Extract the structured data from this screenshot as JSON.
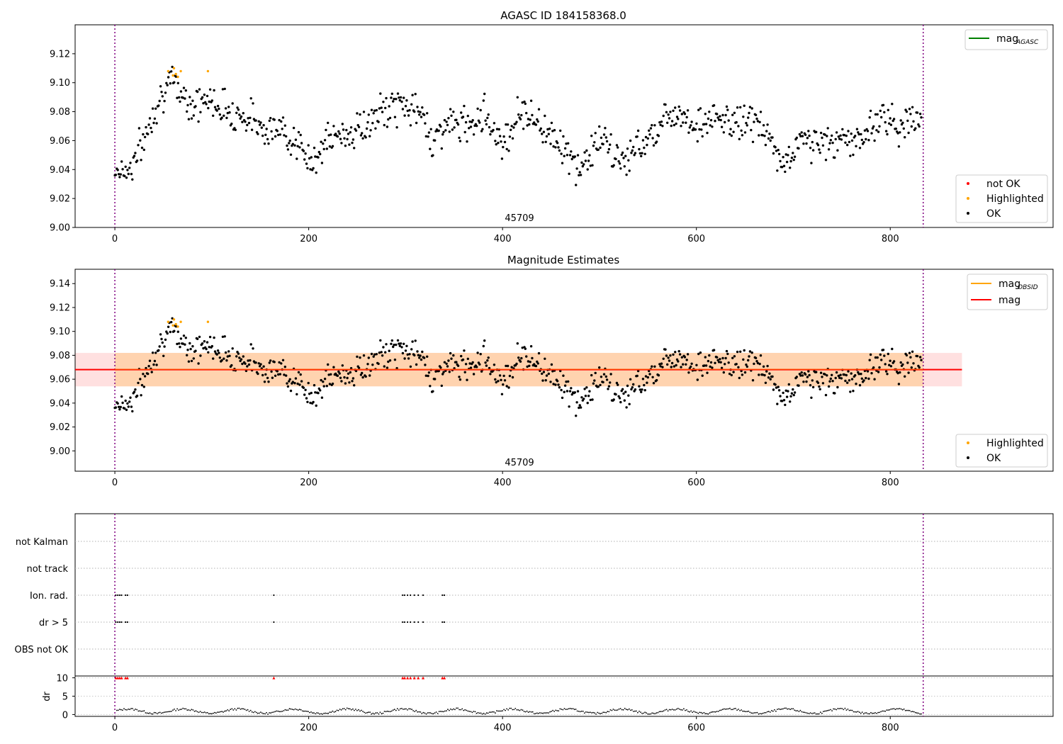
{
  "chart_data": [
    {
      "type": "scatter",
      "title": "AGASC ID 184158368.0",
      "xlabel": "",
      "ylabel": "",
      "xlim": [
        -41,
        968
      ],
      "ylim": [
        9.0,
        9.14
      ],
      "x_ticks": [
        "0",
        "200",
        "400",
        "600",
        "800"
      ],
      "y_ticks": [
        "9.00",
        "9.02",
        "9.04",
        "9.06",
        "9.08",
        "9.10",
        "9.12"
      ],
      "annotation": "45709",
      "vlines": [
        0,
        834
      ],
      "legend_lines": {
        "position": "top-right",
        "label": "mag",
        "sub": "AGASC",
        "color": "#008000"
      },
      "legend_points": {
        "position": "bottom-right",
        "items": [
          {
            "label": "not OK",
            "color": "#ff0000"
          },
          {
            "label": "Highlighted",
            "color": "#ffa500"
          },
          {
            "label": "OK",
            "color": "#000000"
          }
        ]
      },
      "series": [
        {
          "name": "Highlighted",
          "color": "#ffa500",
          "points": [
            [
              55,
              9.108
            ],
            [
              60,
              9.105
            ],
            [
              61,
              9.11
            ],
            [
              63,
              9.106
            ],
            [
              65,
              9.104
            ],
            [
              68,
              9.108
            ],
            [
              96,
              9.108
            ]
          ]
        },
        {
          "name": "OK",
          "color": "#000000",
          "model": {
            "n": 830,
            "x0": 0,
            "x1": 832,
            "base": 9.064,
            "seed": 7,
            "knots": [
              [
                0,
                9.04
              ],
              [
                15,
                9.04
              ],
              [
                30,
                9.06
              ],
              [
                45,
                9.09
              ],
              [
                60,
                9.1
              ],
              [
                80,
                9.085
              ],
              [
                100,
                9.088
              ],
              [
                120,
                9.08
              ],
              [
                140,
                9.075
              ],
              [
                160,
                9.068
              ],
              [
                180,
                9.065
              ],
              [
                200,
                9.045
              ],
              [
                220,
                9.06
              ],
              [
                240,
                9.065
              ],
              [
                260,
                9.07
              ],
              [
                280,
                9.082
              ],
              [
                300,
                9.085
              ],
              [
                320,
                9.075
              ],
              [
                330,
                9.058
              ],
              [
                340,
                9.072
              ],
              [
                360,
                9.07
              ],
              [
                380,
                9.08
              ],
              [
                400,
                9.058
              ],
              [
                420,
                9.082
              ],
              [
                440,
                9.07
              ],
              [
                460,
                9.06
              ],
              [
                470,
                9.045
              ],
              [
                480,
                9.04
              ],
              [
                500,
                9.062
              ],
              [
                520,
                9.045
              ],
              [
                540,
                9.055
              ],
              [
                560,
                9.07
              ],
              [
                580,
                9.082
              ],
              [
                600,
                9.07
              ],
              [
                620,
                9.075
              ],
              [
                640,
                9.072
              ],
              [
                660,
                9.075
              ],
              [
                680,
                9.055
              ],
              [
                690,
                9.042
              ],
              [
                710,
                9.062
              ],
              [
                730,
                9.058
              ],
              [
                750,
                9.06
              ],
              [
                770,
                9.06
              ],
              [
                790,
                9.078
              ],
              [
                810,
                9.07
              ],
              [
                832,
                9.075
              ]
            ],
            "noise": 0.006
          }
        }
      ]
    },
    {
      "type": "scatter",
      "title": "Magnitude Estimates",
      "xlabel": "",
      "ylabel": "",
      "xlim": [
        -41,
        968
      ],
      "ylim": [
        8.983,
        9.152
      ],
      "x_ticks": [
        "0",
        "200",
        "400",
        "600",
        "800"
      ],
      "y_ticks": [
        "9.00",
        "9.02",
        "9.04",
        "9.06",
        "9.08",
        "9.10",
        "9.12",
        "9.14"
      ],
      "annotation": "45709",
      "vlines": [
        0,
        834
      ],
      "mag_level": 9.068,
      "mag_band": [
        9.054,
        9.082
      ],
      "mag_obsid_band": [
        9.054,
        9.082
      ],
      "legend_lines": {
        "position": "top-right",
        "items": [
          {
            "label": "mag",
            "sub": "OBSID",
            "color": "#ffa500"
          },
          {
            "label": "mag",
            "sub": "",
            "color": "#ff0000"
          }
        ]
      },
      "legend_points": {
        "position": "bottom-right",
        "items": [
          {
            "label": "Highlighted",
            "color": "#ffa500"
          },
          {
            "label": "OK",
            "color": "#000000"
          }
        ]
      }
    },
    {
      "type": "scatter",
      "title": "",
      "xlim": [
        -41,
        968
      ],
      "x_ticks": [
        "0",
        "200",
        "400",
        "600",
        "800"
      ],
      "flag_labels": [
        "not Kalman",
        "not track",
        "Ion. rad.",
        "dr > 5",
        "OBS not OK"
      ],
      "flag_points": {
        "Ion. rad.": [
          1,
          3,
          5,
          7,
          11,
          13,
          164,
          297,
          299,
          302,
          305,
          309,
          313,
          318,
          338,
          340
        ],
        "dr > 5": [
          1,
          3,
          5,
          7,
          11,
          13,
          164,
          297,
          299,
          302,
          305,
          309,
          313,
          318,
          338,
          340
        ]
      },
      "dr_ylabel": "dr",
      "dr_ticks": [
        "0",
        "5",
        "10"
      ],
      "dr_ylim": [
        -0.5,
        10.5
      ],
      "dr_high_color": "#ff0000",
      "dr_high_points": [
        1,
        3,
        5,
        7,
        11,
        13,
        164,
        297,
        299,
        302,
        305,
        309,
        313,
        318,
        338,
        340
      ],
      "vlines": [
        0,
        834
      ]
    }
  ]
}
